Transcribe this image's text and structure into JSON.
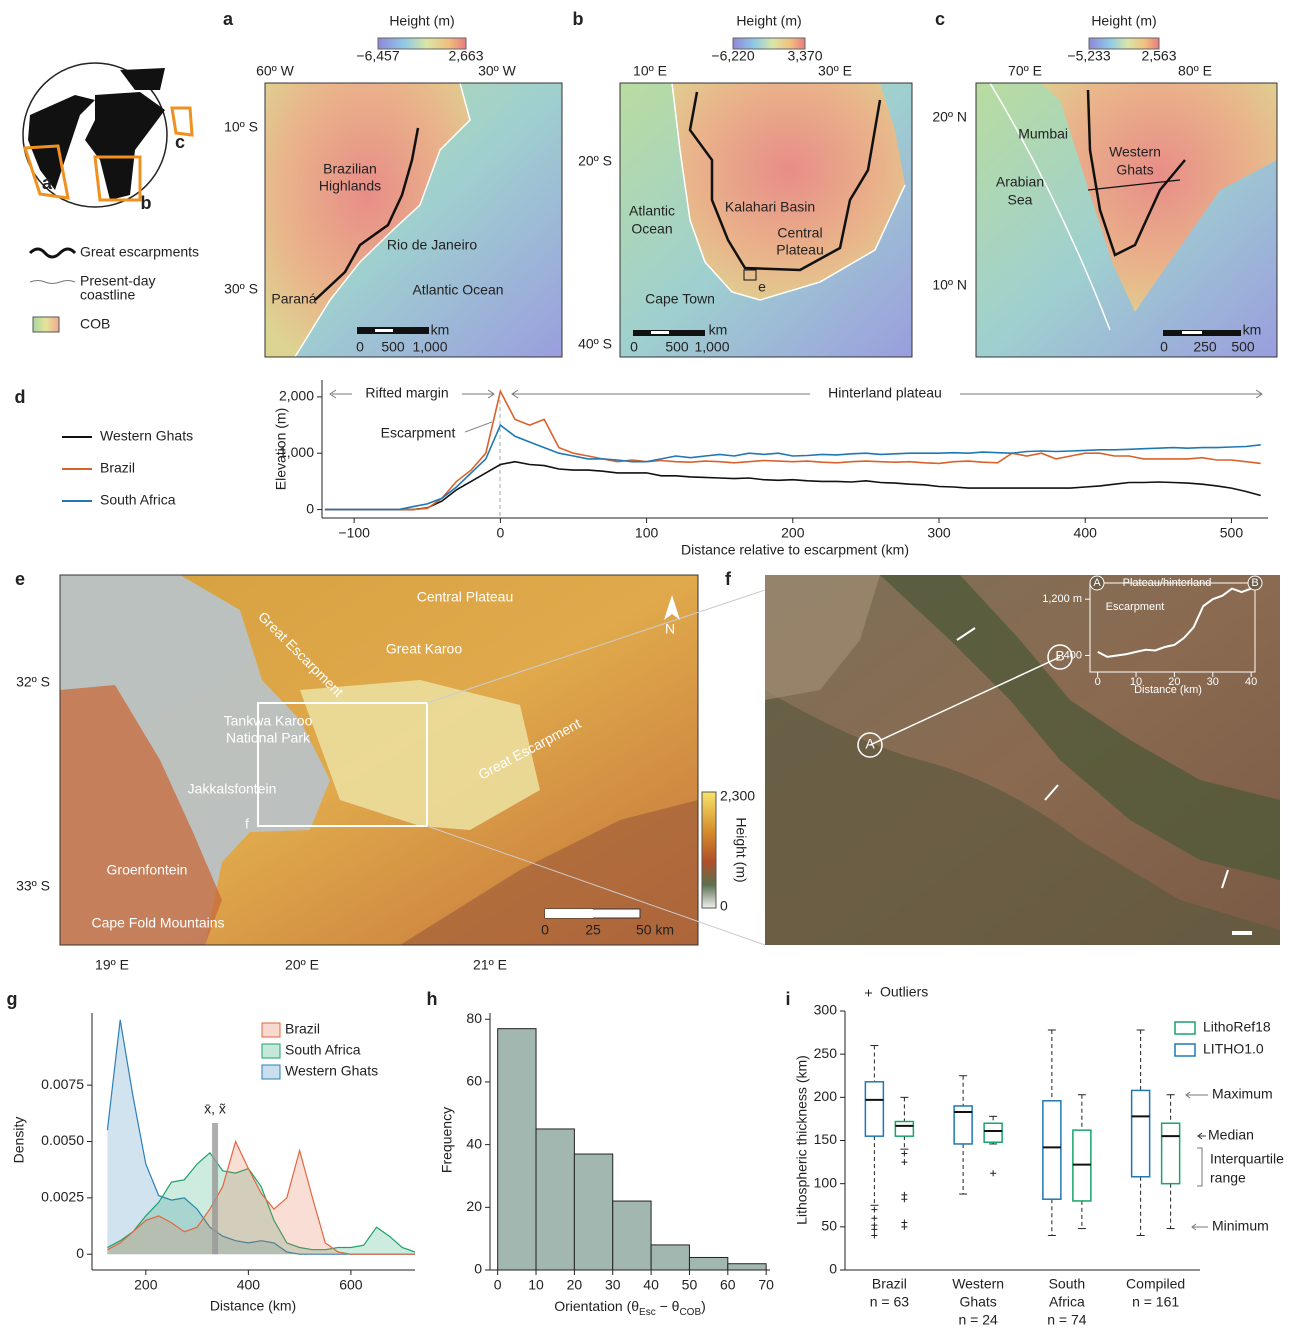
{
  "globe": {
    "labels": [
      "a",
      "b",
      "c"
    ]
  },
  "legend": {
    "escarpments": "Great escarpments",
    "coastline": [
      "Present-day",
      "coastline"
    ],
    "cob": "COB"
  },
  "maps": [
    {
      "letter": "a",
      "colorbar": {
        "title": "Height (m)",
        "min": "−6,457",
        "max": "2,663"
      },
      "lon": [
        "60º W",
        "30º W"
      ],
      "lat": [
        "10º S",
        "30º S"
      ],
      "places": [
        "Brazilian",
        "Highlands",
        "Rio de Janeiro",
        "Atlantic Ocean",
        "Paraná"
      ],
      "scale": {
        "unit": "km",
        "ticks": [
          "0",
          "500",
          "1,000"
        ]
      }
    },
    {
      "letter": "b",
      "colorbar": {
        "title": "Height (m)",
        "min": "−6,220",
        "max": "3,370"
      },
      "lon": [
        "10º E",
        "30º E"
      ],
      "lat": [
        "20º S",
        "40º S"
      ],
      "places": [
        "Atlantic",
        "Ocean",
        "Kalahari Basin",
        "Central",
        "Plateau",
        "e",
        "Cape Town"
      ],
      "scale": {
        "unit": "km",
        "ticks": [
          "0",
          "500",
          "1,000"
        ]
      }
    },
    {
      "letter": "c",
      "colorbar": {
        "title": "Height (m)",
        "min": "−5,233",
        "max": "2,563"
      },
      "lon": [
        "70º E",
        "80º E"
      ],
      "lat": [
        "20º N",
        "10º N"
      ],
      "places": [
        "Mumbai",
        "Western",
        "Ghats",
        "Arabian",
        "Sea"
      ],
      "scale": {
        "unit": "km",
        "ticks": [
          "0",
          "250",
          "500"
        ]
      }
    }
  ],
  "panel_e": {
    "letter": "e",
    "places": [
      "Central Plateau",
      "Great Karoo",
      "Great Escarpment",
      "Tankwa Karoo",
      "National Park",
      "Jakkalsfontein",
      "f",
      "Great Escarpment",
      "Groenfontein",
      "Cape Fold Mountains"
    ],
    "north": "N",
    "colorbar": {
      "title": "Height (m)",
      "max": "2,300",
      "min": "0"
    },
    "scale": [
      "0",
      "25",
      "50 km"
    ],
    "lon": [
      "19º E",
      "20º E",
      "21º E"
    ],
    "lat": [
      "32º S",
      "33º S"
    ]
  },
  "panel_f": {
    "letter": "f",
    "points": [
      "A",
      "B"
    ]
  },
  "chart_data": [
    {
      "type": "line",
      "panel": "d",
      "xlabel": "Distance relative to escarpment (km)",
      "ylabel": "Elevation (m)",
      "annotations": [
        "Rifted margin",
        "Hinterland plateau",
        "Escarpment"
      ],
      "x": [
        -120,
        -110,
        -100,
        -90,
        -80,
        -70,
        -60,
        -50,
        -40,
        -30,
        -20,
        -10,
        0,
        10,
        20,
        30,
        40,
        50,
        60,
        70,
        80,
        90,
        100,
        110,
        120,
        130,
        140,
        150,
        160,
        170,
        180,
        190,
        200,
        210,
        220,
        230,
        240,
        250,
        260,
        270,
        280,
        290,
        300,
        310,
        320,
        330,
        340,
        350,
        360,
        370,
        380,
        390,
        400,
        410,
        420,
        430,
        440,
        450,
        460,
        470,
        480,
        490,
        500,
        510,
        520
      ],
      "series": [
        {
          "name": "Western Ghats",
          "color": "#111111",
          "values": [
            0,
            0,
            0,
            0,
            0,
            0,
            0,
            30,
            150,
            350,
            500,
            650,
            800,
            850,
            800,
            780,
            720,
            700,
            700,
            680,
            650,
            650,
            650,
            600,
            600,
            580,
            570,
            560,
            550,
            560,
            530,
            520,
            530,
            510,
            500,
            500,
            490,
            510,
            480,
            470,
            450,
            440,
            410,
            400,
            380,
            380,
            380,
            380,
            380,
            380,
            380,
            380,
            400,
            420,
            450,
            480,
            480,
            490,
            480,
            470,
            450,
            420,
            380,
            320,
            250
          ]
        },
        {
          "name": "Brazil",
          "color": "#d9622b",
          "values": [
            0,
            0,
            0,
            0,
            0,
            0,
            0,
            20,
            200,
            500,
            700,
            1000,
            2100,
            1600,
            1500,
            1600,
            1100,
            1000,
            950,
            900,
            850,
            880,
            850,
            870,
            850,
            840,
            860,
            850,
            830,
            850,
            870,
            860,
            850,
            860,
            840,
            830,
            850,
            860,
            850,
            840,
            850,
            830,
            820,
            850,
            860,
            840,
            830,
            1000,
            950,
            1000,
            900,
            950,
            1000,
            1000,
            950,
            950,
            900,
            900,
            900,
            900,
            920,
            880,
            880,
            850,
            820
          ]
        },
        {
          "name": "South Africa",
          "color": "#1f77b4",
          "values": [
            0,
            0,
            0,
            0,
            0,
            0,
            50,
            100,
            200,
            400,
            650,
            900,
            1500,
            1300,
            1200,
            1100,
            1000,
            950,
            900,
            900,
            880,
            850,
            850,
            900,
            950,
            920,
            950,
            980,
            950,
            1000,
            980,
            1000,
            950,
            960,
            980,
            970,
            990,
            1000,
            980,
            990,
            1000,
            1000,
            1000,
            1010,
            1000,
            1020,
            1010,
            1000,
            1030,
            1040,
            1030,
            1040,
            1050,
            1060,
            1060,
            1070,
            1080,
            1090,
            1100,
            1090,
            1100,
            1100,
            1110,
            1120,
            1150
          ]
        }
      ],
      "xlim": [
        -122,
        525
      ],
      "ylim": [
        -150,
        2300
      ],
      "xticks": [
        {
          "value": -100,
          "label": "−100"
        },
        0,
        100,
        200,
        300,
        400,
        500
      ],
      "yticks": [
        0,
        {
          "value": 1000,
          "label": "1,000"
        },
        {
          "value": 2000,
          "label": "2,000"
        }
      ]
    },
    {
      "type": "line",
      "xlabel": "Distance (km)",
      "annotations": [
        "Plateau/hinterland",
        "Escarpment"
      ],
      "ends": [
        "A",
        "B"
      ],
      "x": [
        0,
        2.5,
        5,
        7.5,
        10,
        12.5,
        15,
        17.5,
        20,
        22.5,
        25,
        27.5,
        30,
        32.5,
        35,
        37.5,
        40
      ],
      "series": [
        {
          "color": "#ffffff",
          "values": [
            450,
            380,
            400,
            420,
            450,
            480,
            470,
            520,
            550,
            650,
            800,
            1100,
            1200,
            1250,
            1350,
            1300,
            1350
          ]
        }
      ],
      "xlim": [
        -2,
        41
      ],
      "ylim": [
        165,
        1430
      ],
      "xticks": [
        0,
        10,
        20,
        30,
        40
      ],
      "yticks": [
        400,
        {
          "value": 1200,
          "label": "1,200 m"
        }
      ]
    },
    {
      "type": "area",
      "panel": "g",
      "xlabel": "Distance (km)",
      "ylabel": "Density",
      "x": [
        125,
        150,
        175,
        200,
        225,
        250,
        275,
        300,
        325,
        350,
        375,
        400,
        425,
        450,
        475,
        500,
        525,
        550,
        575,
        600,
        625,
        650,
        675,
        700,
        725
      ],
      "series": [
        {
          "name": "Brazil",
          "color": "#e2673f",
          "values": [
            0.0002,
            0.0005,
            0.001,
            0.0015,
            0.0017,
            0.0014,
            0.001,
            0.0012,
            0.002,
            0.003,
            0.005,
            0.0038,
            0.0027,
            0.002,
            0.0025,
            0.0046,
            0.0025,
            0.0005,
            0.0001,
            0,
            0,
            0,
            0,
            0,
            0
          ]
        },
        {
          "name": "South Africa",
          "color": "#1aa36a",
          "values": [
            0.0003,
            0.0006,
            0.001,
            0.0017,
            0.0023,
            0.0032,
            0.0033,
            0.004,
            0.0045,
            0.0037,
            0.0036,
            0.0038,
            0.003,
            0.0015,
            0.0005,
            0.0003,
            0.0002,
            0.0002,
            0.0003,
            0.0003,
            0.0004,
            0.0012,
            0.0008,
            0.0003,
            0.0001
          ]
        },
        {
          "name": "Western Ghats",
          "color": "#2c7fb8",
          "values": [
            0.0055,
            0.0104,
            0.007,
            0.004,
            0.0026,
            0.0024,
            0.0025,
            0.002,
            0.0012,
            0.0008,
            0.0006,
            0.0005,
            0.0006,
            0.0005,
            0.0001,
            0,
            0,
            0,
            0,
            0,
            0,
            0,
            0,
            0,
            0
          ]
        }
      ],
      "marker": {
        "value": 335,
        "label": "x̄, x̃"
      },
      "xlim": [
        95,
        725
      ],
      "ylim": [
        -0.0007,
        0.0107
      ],
      "xticks": [
        200,
        400,
        600
      ],
      "yticks": [
        0,
        0.0025,
        {
          "value": 0.005,
          "label": "0.0050"
        },
        0.0075
      ]
    },
    {
      "type": "histogram",
      "panel": "h",
      "xlabel": {
        "text": "Orientation (θ",
        "sub1": "Esc",
        "mid": " − θ",
        "sub2": "COB",
        "end": ")"
      },
      "ylabel": "Frequency",
      "bins": [
        0,
        10,
        20,
        30,
        40,
        50,
        60,
        70
      ],
      "values": [
        77,
        45,
        37,
        22,
        8,
        4,
        2
      ],
      "color": "#a3b7b1",
      "xlim": [
        -2,
        71
      ],
      "ylim": [
        0,
        82
      ],
      "xticks": [
        0,
        10,
        20,
        30,
        40,
        50,
        60,
        70
      ],
      "yticks": [
        0,
        20,
        40,
        60,
        80
      ]
    },
    {
      "type": "box",
      "panel": "i",
      "ylabel": "Lithospheric thickness (km)",
      "categories": [
        [
          "Brazil"
        ],
        [
          "Western",
          "Ghats"
        ],
        [
          "South",
          "Africa"
        ],
        [
          "Compiled"
        ]
      ],
      "n_labels": [
        "n = 63",
        "n = 24",
        "n = 74",
        "n = 161"
      ],
      "series": [
        {
          "name": "LITHO1.0",
          "color": "#1f78b4",
          "boxes": [
            {
              "min": 75,
              "q1": 155,
              "median": 197,
              "q3": 218,
              "max": 260,
              "outliers": [
                70,
                60,
                52,
                47,
                40
              ]
            },
            {
              "min": 88,
              "q1": 146,
              "median": 183,
              "q3": 190,
              "max": 225,
              "outliers": []
            },
            {
              "min": 40,
              "q1": 82,
              "median": 142,
              "q3": 196,
              "max": 278,
              "outliers": []
            },
            {
              "min": 40,
              "q1": 108,
              "median": 178,
              "q3": 208,
              "max": 278,
              "outliers": []
            }
          ]
        },
        {
          "name": "LithoRef18",
          "color": "#1aa36a",
          "boxes": [
            {
              "min": 140,
              "q1": 155,
              "median": 167,
              "q3": 172,
              "max": 200,
              "outliers": [
                135,
                125,
                87,
                82,
                55,
                50
              ]
            },
            {
              "min": 146,
              "q1": 148,
              "median": 161,
              "q3": 170,
              "max": 178,
              "outliers": [
                112
              ]
            },
            {
              "min": 48,
              "q1": 80,
              "median": 122,
              "q3": 162,
              "max": 203,
              "outliers": []
            },
            {
              "min": 48,
              "q1": 100,
              "median": 155,
              "q3": 170,
              "max": 203,
              "outliers": []
            }
          ]
        }
      ],
      "outlier_label": "Outliers",
      "annotations": {
        "maximum": "Maximum",
        "median": "Median",
        "iqr": [
          "Interquartile",
          "range"
        ],
        "minimum": "Minimum"
      },
      "ylim": [
        0,
        300
      ],
      "yticks": [
        0,
        50,
        100,
        150,
        200,
        250,
        300
      ]
    }
  ]
}
